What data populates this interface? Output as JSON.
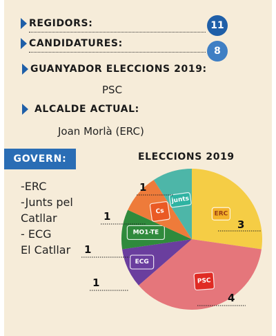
{
  "info": {
    "regidors_label": "REGIDORS:",
    "regidors_value": "11",
    "candidatures_label": "CANDIDATURES:",
    "candidatures_value": "8",
    "guanyador_label": "GUANYADOR ELECCIONS 2019:",
    "guanyador_value": "PSC",
    "alcalde_label": "ALCALDE ACTUAL:",
    "alcalde_value": "Joan Morlà (ERC)"
  },
  "govern": {
    "label": "GOVERN:",
    "lines": [
      "-ERC",
      "-Junts pel",
      "Catllar",
      "- ECG",
      "El Catllar"
    ]
  },
  "colors": {
    "badge": "#1f5fa8",
    "govern_box": "#2a6db5",
    "background": "#f6ecd9"
  },
  "chart_data": {
    "type": "pie",
    "title": "ELECCIONS 2019",
    "slices": [
      {
        "party": "ERC",
        "seats": 3,
        "color": "#f5cd45",
        "logo_text": "ERC",
        "logo_bg": "#f4b32b",
        "logo_fg": "#9a3e15"
      },
      {
        "party": "PSC",
        "seats": 4,
        "color": "#e5767b",
        "logo_text": "PSC",
        "logo_bg": "#e02b24",
        "logo_fg": "#ffffff"
      },
      {
        "party": "ECG",
        "seats": 1,
        "color": "#6a3e9e",
        "logo_text": "ECG",
        "logo_bg": "#6a3e9e",
        "logo_fg": "#ffffff"
      },
      {
        "party": "MO1-TE",
        "seats": 1,
        "color": "#2f8a3c",
        "logo_text": "MO1-TE",
        "logo_bg": "#2f8a3c",
        "logo_fg": "#ffffff"
      },
      {
        "party": "Cs",
        "seats": 1,
        "color": "#ee7b3a",
        "logo_text": "Cs",
        "logo_bg": "#ea5a24",
        "logo_fg": "#ffffff"
      },
      {
        "party": "Junts",
        "seats": 1,
        "color": "#4db6a8",
        "logo_text": "junts",
        "logo_bg": "#2fb3a2",
        "logo_fg": "#ffffff"
      }
    ]
  }
}
